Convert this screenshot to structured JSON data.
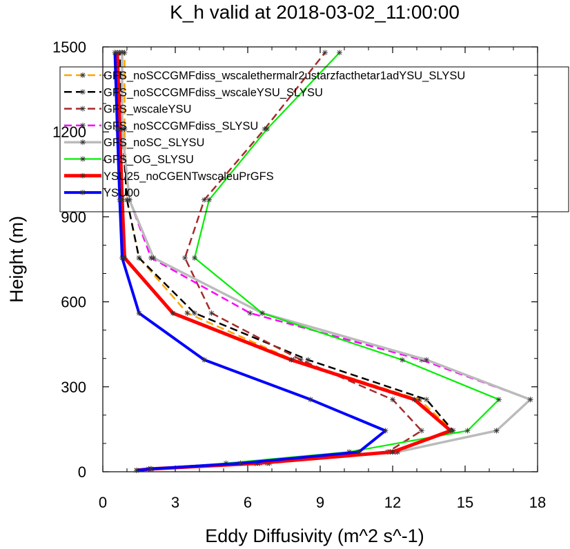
{
  "chart_data": {
    "type": "line",
    "title": "K_h valid at 2018-03-02_11:00:00",
    "xlabel": "Eddy Diffusivity (m^2 s^-1)",
    "ylabel": "Height (m)",
    "xlim": [
      0,
      18
    ],
    "ylim": [
      0,
      1500
    ],
    "xticks": [
      "0",
      "3",
      "6",
      "9",
      "12",
      "15",
      "18"
    ],
    "yticks": [
      "0",
      "300",
      "600",
      "900",
      "1200",
      "1500"
    ],
    "legend_position": "top-right",
    "series": [
      {
        "name": "GFS_noSCCGMFdiss_wscalethermalr2ustarzfacthetar1adYSU_SLYSU",
        "color": "#ffa500",
        "dash": "dashed",
        "width": 2.5,
        "points": [
          [
            1.4,
            5
          ],
          [
            2.0,
            10
          ],
          [
            6.9,
            30
          ],
          [
            12.1,
            70
          ],
          [
            14.5,
            145
          ],
          [
            13.1,
            255
          ],
          [
            7.9,
            395
          ],
          [
            3.5,
            560
          ],
          [
            1.5,
            755
          ],
          [
            1.0,
            960
          ],
          [
            0.9,
            1210
          ],
          [
            0.9,
            1480
          ]
        ]
      },
      {
        "name": "GFS_noSCCGMFdiss_wscaleYSU_SLYSU",
        "color": "#000000",
        "dash": "dashed",
        "width": 2.5,
        "points": [
          [
            1.4,
            5
          ],
          [
            2.0,
            10
          ],
          [
            6.8,
            30
          ],
          [
            11.9,
            70
          ],
          [
            14.5,
            145
          ],
          [
            13.4,
            255
          ],
          [
            8.5,
            395
          ],
          [
            3.8,
            560
          ],
          [
            1.5,
            755
          ],
          [
            1.0,
            960
          ],
          [
            0.8,
            1210
          ],
          [
            0.7,
            1480
          ]
        ]
      },
      {
        "name": "GFS_wscaleYSU",
        "color": "#a52a2a",
        "dash": "dashed",
        "width": 2.5,
        "points": [
          [
            1.4,
            5
          ],
          [
            1.9,
            10
          ],
          [
            6.5,
            30
          ],
          [
            11.8,
            70
          ],
          [
            13.2,
            145
          ],
          [
            12.0,
            255
          ],
          [
            8.2,
            395
          ],
          [
            4.5,
            560
          ],
          [
            3.4,
            755
          ],
          [
            4.2,
            960
          ],
          [
            6.7,
            1210
          ],
          [
            9.2,
            1480
          ]
        ]
      },
      {
        "name": "GFS_noSCCGMFdiss_SLYSU",
        "color": "#ff00ff",
        "dash": "dashed",
        "width": 2.5,
        "points": [
          [
            1.4,
            5
          ],
          [
            2.0,
            10
          ],
          [
            6.3,
            30
          ],
          [
            12.2,
            70
          ],
          [
            16.3,
            145
          ],
          [
            17.7,
            255
          ],
          [
            13.2,
            395
          ],
          [
            6.1,
            560
          ],
          [
            2.0,
            755
          ],
          [
            1.1,
            960
          ],
          [
            0.8,
            1210
          ],
          [
            0.8,
            1480
          ]
        ]
      },
      {
        "name": "GFS_noSC_SLYSU",
        "color": "#bbbbbb",
        "dash": "solid",
        "width": 3.5,
        "points": [
          [
            1.4,
            5
          ],
          [
            2.0,
            10
          ],
          [
            6.3,
            30
          ],
          [
            12.2,
            70
          ],
          [
            16.3,
            145
          ],
          [
            17.7,
            255
          ],
          [
            13.4,
            395
          ],
          [
            6.6,
            560
          ],
          [
            2.1,
            755
          ],
          [
            1.1,
            960
          ],
          [
            0.8,
            1210
          ],
          [
            0.8,
            1480
          ]
        ]
      },
      {
        "name": "GFS_OG_SLYSU",
        "color": "#00ee00",
        "dash": "solid",
        "width": 2.2,
        "points": [
          [
            1.4,
            5
          ],
          [
            2.0,
            10
          ],
          [
            5.1,
            30
          ],
          [
            10.2,
            70
          ],
          [
            15.1,
            145
          ],
          [
            16.4,
            255
          ],
          [
            12.4,
            395
          ],
          [
            6.6,
            560
          ],
          [
            3.8,
            755
          ],
          [
            4.4,
            960
          ],
          [
            6.8,
            1210
          ],
          [
            9.8,
            1480
          ]
        ]
      },
      {
        "name": "YSU25_noCGENTwscaleuPrGFS",
        "color": "#ff0000",
        "dash": "solid",
        "width": 5,
        "points": [
          [
            1.4,
            5
          ],
          [
            2.0,
            10
          ],
          [
            6.4,
            30
          ],
          [
            12.0,
            70
          ],
          [
            14.4,
            145
          ],
          [
            12.9,
            255
          ],
          [
            7.8,
            395
          ],
          [
            2.9,
            560
          ],
          [
            0.9,
            755
          ],
          [
            0.8,
            960
          ],
          [
            0.7,
            1210
          ],
          [
            0.6,
            1480
          ]
        ]
      },
      {
        "name": "YSU00",
        "color": "#0000ff",
        "dash": "solid",
        "width": 4,
        "points": [
          [
            1.4,
            5
          ],
          [
            2.0,
            10
          ],
          [
            5.7,
            30
          ],
          [
            10.6,
            70
          ],
          [
            11.7,
            145
          ],
          [
            8.6,
            255
          ],
          [
            4.2,
            395
          ],
          [
            1.5,
            560
          ],
          [
            0.8,
            755
          ],
          [
            0.7,
            960
          ],
          [
            0.6,
            1210
          ],
          [
            0.5,
            1480
          ]
        ]
      }
    ]
  }
}
